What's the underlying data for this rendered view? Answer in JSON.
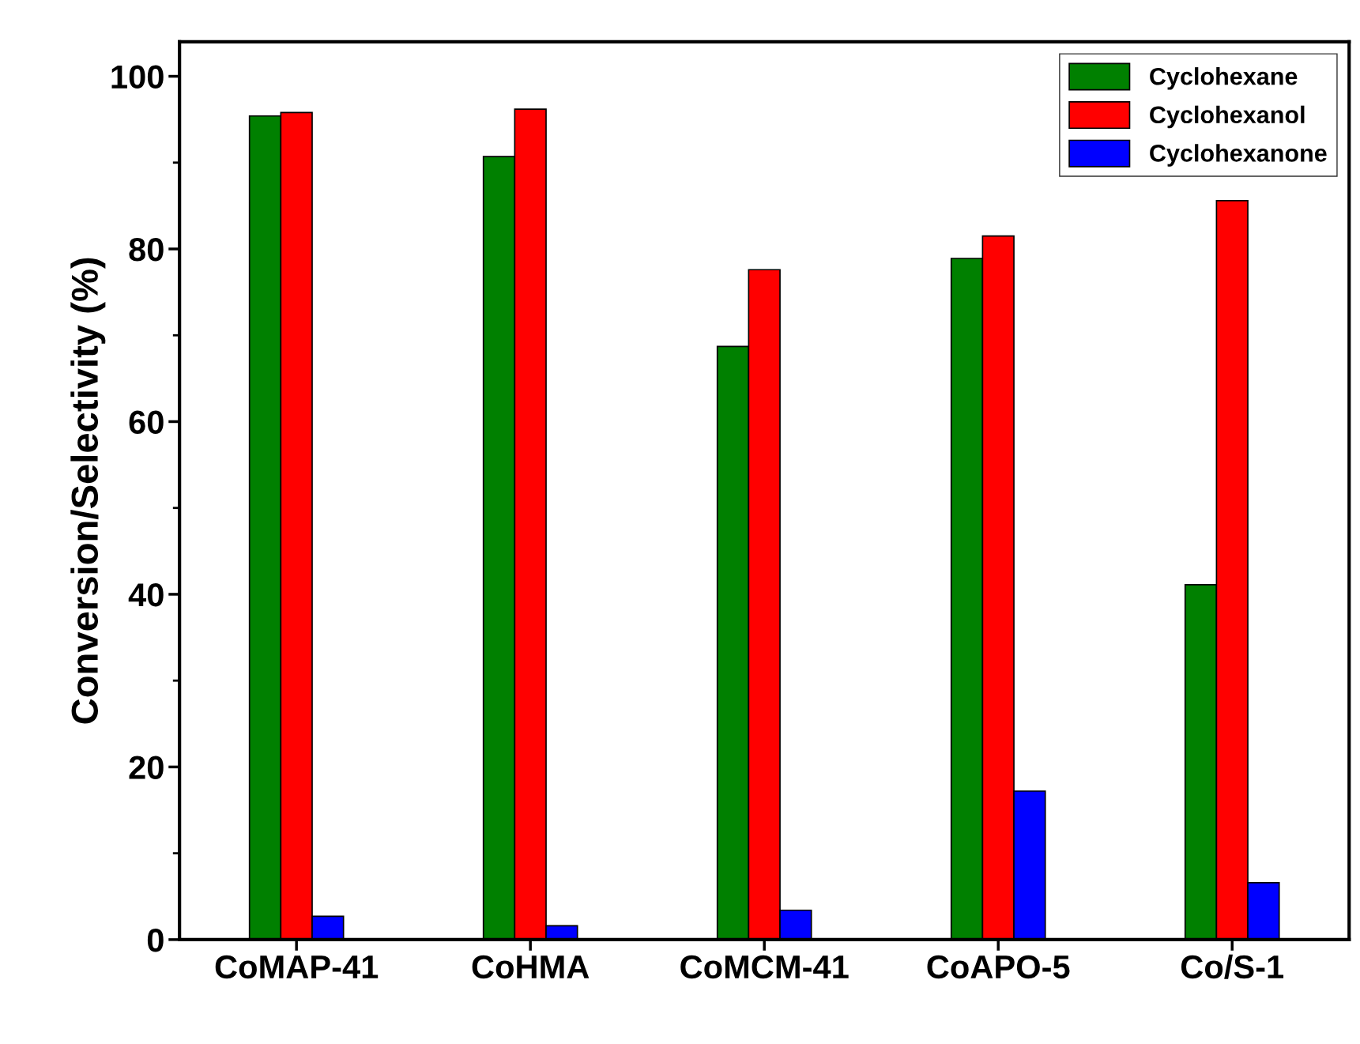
{
  "chart_data": {
    "type": "bar",
    "ylabel": "Conversion/Selectivity (%)",
    "categories": [
      "CoMAP-41",
      "CoHMA",
      "CoMCM-41",
      "CoAPO-5",
      "Co/S-1"
    ],
    "series": [
      {
        "name": "Cyclohexane",
        "color": "#008000",
        "values": [
          95.4,
          90.7,
          68.7,
          78.9,
          41.1
        ]
      },
      {
        "name": "Cyclohexanol",
        "color": "#ff0000",
        "values": [
          95.8,
          96.2,
          77.6,
          81.5,
          85.6
        ]
      },
      {
        "name": "Cyclohexanone",
        "color": "#0000ff",
        "values": [
          2.7,
          1.6,
          3.4,
          17.2,
          6.6
        ]
      }
    ],
    "ylim": [
      0,
      104
    ],
    "yticks": [
      0,
      20,
      40,
      60,
      80,
      100
    ],
    "grid": false,
    "legend": "top right"
  }
}
